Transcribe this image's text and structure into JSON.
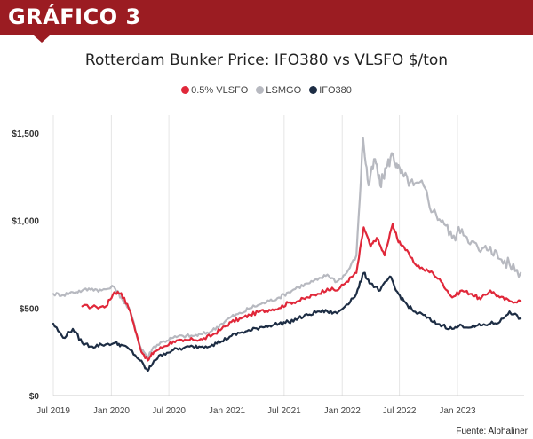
{
  "header": {
    "label": "GRÁFICO 3"
  },
  "source": "Fuente: Alphaliner",
  "chart_data": {
    "type": "line",
    "title": "Rotterdam Bunker Price: IFO380 vs VLSFO $/ton",
    "xlabel": "",
    "ylabel": "",
    "ylim": [
      0,
      1600
    ],
    "yticks": [
      0,
      500,
      1000,
      1500
    ],
    "ytick_labels": [
      "$0",
      "$500",
      "$1,000",
      "$1,500"
    ],
    "xlim": [
      "2019-07-01",
      "2023-07-31"
    ],
    "xticks": [
      "2019-07-01",
      "2020-01-01",
      "2020-07-01",
      "2021-01-01",
      "2021-07-01",
      "2022-01-01",
      "2022-07-01",
      "2023-01-01"
    ],
    "xtick_labels": [
      "Jul 2019",
      "Jan 2020",
      "Jul 2020",
      "Jan 2021",
      "Jul 2021",
      "Jan 2022",
      "Jul 2022",
      "Jan 2023"
    ],
    "grid": "vertical",
    "legend": "top-center",
    "series": [
      {
        "name": "0.5% VLSFO",
        "color": "#e0283a",
        "x": [
          "2019-10-01",
          "2019-11-15",
          "2019-12-15",
          "2020-01-10",
          "2020-02-01",
          "2020-03-01",
          "2020-04-01",
          "2020-04-25",
          "2020-05-15",
          "2020-06-15",
          "2020-07-15",
          "2020-08-15",
          "2020-09-15",
          "2020-10-15",
          "2020-11-15",
          "2020-12-15",
          "2021-01-15",
          "2021-02-15",
          "2021-03-15",
          "2021-04-15",
          "2021-05-15",
          "2021-06-15",
          "2021-07-15",
          "2021-08-15",
          "2021-09-15",
          "2021-10-15",
          "2021-11-15",
          "2021-12-15",
          "2022-01-15",
          "2022-02-15",
          "2022-03-10",
          "2022-04-01",
          "2022-04-20",
          "2022-05-15",
          "2022-06-10",
          "2022-06-25",
          "2022-07-15",
          "2022-08-15",
          "2022-09-15",
          "2022-10-15",
          "2022-11-15",
          "2022-12-15",
          "2023-01-15",
          "2023-02-15",
          "2023-03-15",
          "2023-04-15",
          "2023-05-15",
          "2023-06-15",
          "2023-07-20"
        ],
        "values": [
          510,
          505,
          510,
          590,
          585,
          480,
          270,
          200,
          250,
          280,
          310,
          310,
          320,
          320,
          345,
          380,
          420,
          440,
          460,
          480,
          490,
          500,
          530,
          540,
          560,
          580,
          610,
          600,
          650,
          700,
          960,
          850,
          900,
          800,
          980,
          890,
          850,
          760,
          720,
          700,
          640,
          560,
          600,
          580,
          550,
          600,
          560,
          540,
          540
        ]
      },
      {
        "name": "LSMGO",
        "color": "#b7b9c0",
        "x": [
          "2019-07-01",
          "2019-08-01",
          "2019-09-01",
          "2019-10-01",
          "2019-11-01",
          "2019-12-01",
          "2020-01-10",
          "2020-02-01",
          "2020-03-01",
          "2020-04-01",
          "2020-04-25",
          "2020-05-15",
          "2020-06-15",
          "2020-07-15",
          "2020-08-15",
          "2020-09-15",
          "2020-10-15",
          "2020-11-15",
          "2020-12-15",
          "2021-01-15",
          "2021-02-15",
          "2021-03-15",
          "2021-04-15",
          "2021-05-15",
          "2021-06-15",
          "2021-07-15",
          "2021-08-15",
          "2021-09-15",
          "2021-10-15",
          "2021-11-15",
          "2021-12-15",
          "2022-01-15",
          "2022-02-15",
          "2022-03-08",
          "2022-03-25",
          "2022-04-15",
          "2022-05-01",
          "2022-05-20",
          "2022-06-10",
          "2022-06-25",
          "2022-07-15",
          "2022-08-15",
          "2022-09-15",
          "2022-10-15",
          "2022-11-15",
          "2022-12-15",
          "2023-01-15",
          "2023-02-15",
          "2023-03-15",
          "2023-04-15",
          "2023-05-15",
          "2023-06-15",
          "2023-07-20"
        ],
        "values": [
          580,
          575,
          590,
          600,
          610,
          600,
          620,
          560,
          480,
          280,
          220,
          280,
          310,
          330,
          340,
          340,
          350,
          370,
          410,
          450,
          470,
          500,
          520,
          540,
          560,
          590,
          620,
          640,
          660,
          690,
          650,
          700,
          800,
          1470,
          1200,
          1350,
          1200,
          1300,
          1380,
          1300,
          1250,
          1200,
          1200,
          1050,
          1000,
          900,
          950,
          880,
          820,
          850,
          780,
          750,
          700
        ]
      },
      {
        "name": "IFO380",
        "color": "#1d2d44",
        "x": [
          "2019-07-01",
          "2019-08-01",
          "2019-09-01",
          "2019-10-01",
          "2019-11-01",
          "2019-12-01",
          "2020-01-10",
          "2020-02-01",
          "2020-03-01",
          "2020-04-01",
          "2020-04-25",
          "2020-05-15",
          "2020-06-15",
          "2020-07-15",
          "2020-08-15",
          "2020-09-15",
          "2020-10-15",
          "2020-11-15",
          "2020-12-15",
          "2021-01-15",
          "2021-02-15",
          "2021-03-15",
          "2021-04-15",
          "2021-05-15",
          "2021-06-15",
          "2021-07-15",
          "2021-08-15",
          "2021-09-15",
          "2021-10-15",
          "2021-11-15",
          "2021-12-15",
          "2022-01-15",
          "2022-02-15",
          "2022-03-10",
          "2022-04-01",
          "2022-05-01",
          "2022-06-01",
          "2022-06-20",
          "2022-07-15",
          "2022-08-15",
          "2022-09-15",
          "2022-10-15",
          "2022-11-15",
          "2022-12-15",
          "2023-01-15",
          "2023-02-15",
          "2023-03-15",
          "2023-04-15",
          "2023-05-15",
          "2023-06-15",
          "2023-07-20"
        ],
        "values": [
          410,
          330,
          380,
          300,
          280,
          290,
          300,
          290,
          260,
          200,
          140,
          200,
          240,
          260,
          270,
          280,
          280,
          290,
          310,
          340,
          360,
          370,
          390,
          400,
          410,
          420,
          440,
          460,
          480,
          480,
          470,
          520,
          580,
          700,
          640,
          600,
          680,
          600,
          540,
          480,
          460,
          420,
          400,
          380,
          400,
          390,
          400,
          410,
          420,
          480,
          440
        ]
      }
    ]
  }
}
